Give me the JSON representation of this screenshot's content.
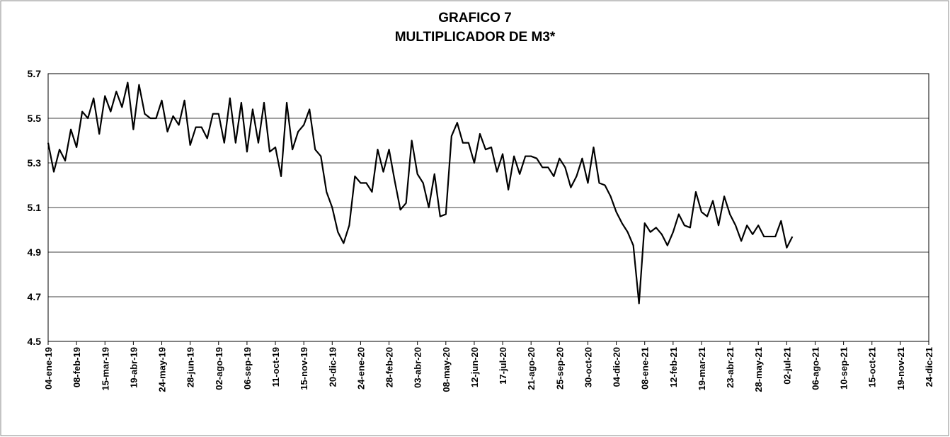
{
  "chart_data": {
    "type": "line",
    "title": "GRAFICO 7",
    "subtitle": "MULTIPLICADOR DE  M3*",
    "categories": [
      "04-ene-19",
      null,
      null,
      null,
      null,
      "08-feb-19",
      null,
      null,
      null,
      null,
      "15-mar-19",
      null,
      null,
      null,
      null,
      "19-abr-19",
      null,
      null,
      null,
      null,
      "24-may-19",
      null,
      null,
      null,
      null,
      "28-jun-19",
      null,
      null,
      null,
      null,
      "02-ago-19",
      null,
      null,
      null,
      null,
      "06-sep-19",
      null,
      null,
      null,
      null,
      "11-oct-19",
      null,
      null,
      null,
      null,
      "15-nov-19",
      null,
      null,
      null,
      null,
      "20-dic-19",
      null,
      null,
      null,
      null,
      "24-ene-20",
      null,
      null,
      null,
      null,
      "28-feb-20",
      null,
      null,
      null,
      null,
      "03-abr-20",
      null,
      null,
      null,
      null,
      "08-may-20",
      null,
      null,
      null,
      null,
      "12-jun-20",
      null,
      null,
      null,
      null,
      "17-jul-20",
      null,
      null,
      null,
      null,
      "21-ago-20",
      null,
      null,
      null,
      null,
      "25-sep-20",
      null,
      null,
      null,
      null,
      "30-oct-20",
      null,
      null,
      null,
      null,
      "04-dic-20",
      null,
      null,
      null,
      null,
      "08-ene-21",
      null,
      null,
      null,
      null,
      "12-feb-21",
      null,
      null,
      null,
      null,
      "19-mar-21",
      null,
      null,
      null,
      null,
      "23-abr-21",
      null,
      null,
      null,
      null,
      "28-may-21",
      null,
      null,
      null,
      null,
      "02-jul-21",
      null,
      null,
      null,
      null,
      "06-ago-21",
      null,
      null,
      null,
      null,
      "10-sep-21",
      null,
      null,
      null,
      null,
      "15-oct-21",
      null,
      null,
      null,
      null,
      "19-nov-21",
      null,
      null,
      null,
      null,
      "24-dic-21"
    ],
    "series": [
      {
        "name": null,
        "color": "#000000",
        "values": [
          5.39,
          5.26,
          5.36,
          5.31,
          5.45,
          5.37,
          5.53,
          5.5,
          5.59,
          5.43,
          5.6,
          5.53,
          5.62,
          5.55,
          5.66,
          5.45,
          5.65,
          5.52,
          5.5,
          5.5,
          5.58,
          5.44,
          5.51,
          5.47,
          5.58,
          5.38,
          5.46,
          5.46,
          5.41,
          5.52,
          5.52,
          5.39,
          5.59,
          5.39,
          5.57,
          5.35,
          5.54,
          5.39,
          5.57,
          5.35,
          5.37,
          5.24,
          5.57,
          5.36,
          5.44,
          5.47,
          5.54,
          5.36,
          5.33,
          5.17,
          5.1,
          4.99,
          4.94,
          5.02,
          5.24,
          5.21,
          5.21,
          5.17,
          5.36,
          5.26,
          5.36,
          5.22,
          5.09,
          5.12,
          5.4,
          5.25,
          5.21,
          5.1,
          5.25,
          5.06,
          5.07,
          5.42,
          5.48,
          5.39,
          5.39,
          5.3,
          5.43,
          5.36,
          5.37,
          5.26,
          5.34,
          5.18,
          5.33,
          5.25,
          5.33,
          5.33,
          5.32,
          5.28,
          5.28,
          5.24,
          5.32,
          5.28,
          5.19,
          5.24,
          5.32,
          5.21,
          5.37,
          5.21,
          5.2,
          5.15,
          5.08,
          5.03,
          4.99,
          4.93,
          4.67,
          5.03,
          4.99,
          5.01,
          4.98,
          4.93,
          4.99,
          5.07,
          5.02,
          5.01,
          5.17,
          5.08,
          5.06,
          5.13,
          5.02,
          5.15,
          5.07,
          5.02,
          4.95,
          5.02,
          4.98,
          5.02,
          4.97,
          4.97,
          4.97,
          5.04,
          4.92,
          4.97,
          null,
          null,
          null,
          null,
          null,
          null,
          null,
          null,
          null,
          null,
          null,
          null,
          null,
          null,
          null,
          null,
          null,
          null,
          null,
          null,
          null,
          null,
          null,
          null
        ]
      }
    ],
    "ylim": [
      4.5,
      5.7
    ],
    "yticks": [
      4.5,
      4.7,
      4.9,
      5.1,
      5.3,
      5.5,
      5.7
    ],
    "grid": true
  }
}
